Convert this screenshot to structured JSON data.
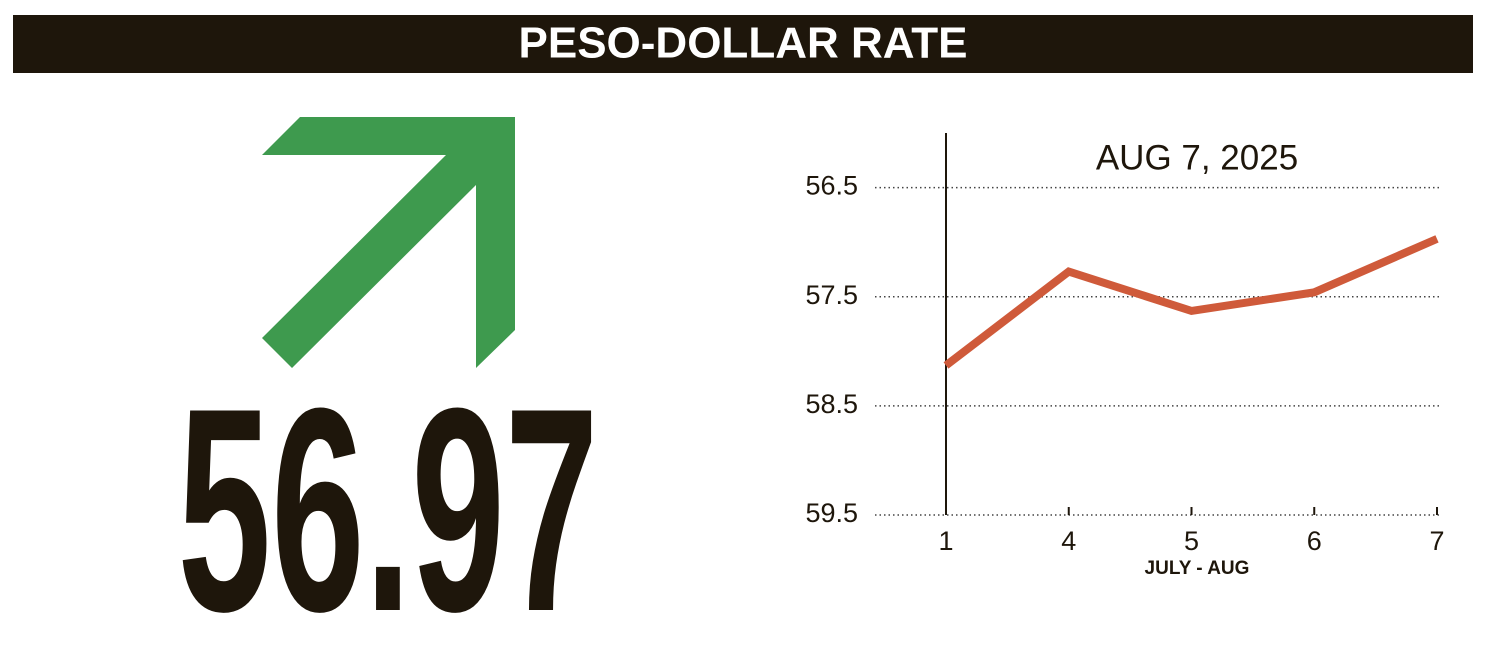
{
  "title": "PESO-DOLLAR RATE",
  "rate": "56.97",
  "chart_data": {
    "type": "line",
    "title": "AUG 7, 2025",
    "x_label": "JULY - AUG",
    "categories": [
      "1",
      "4",
      "5",
      "6",
      "7"
    ],
    "series": [
      {
        "name": "Peso-dollar rate",
        "color": "#cf5a3a",
        "values": [
          58.13,
          57.27,
          57.63,
          57.46,
          56.97
        ]
      }
    ],
    "ylim": [
      59.5,
      56.0
    ],
    "yticks": [
      56.5,
      57.5,
      58.5,
      59.5
    ],
    "grid": true
  }
}
